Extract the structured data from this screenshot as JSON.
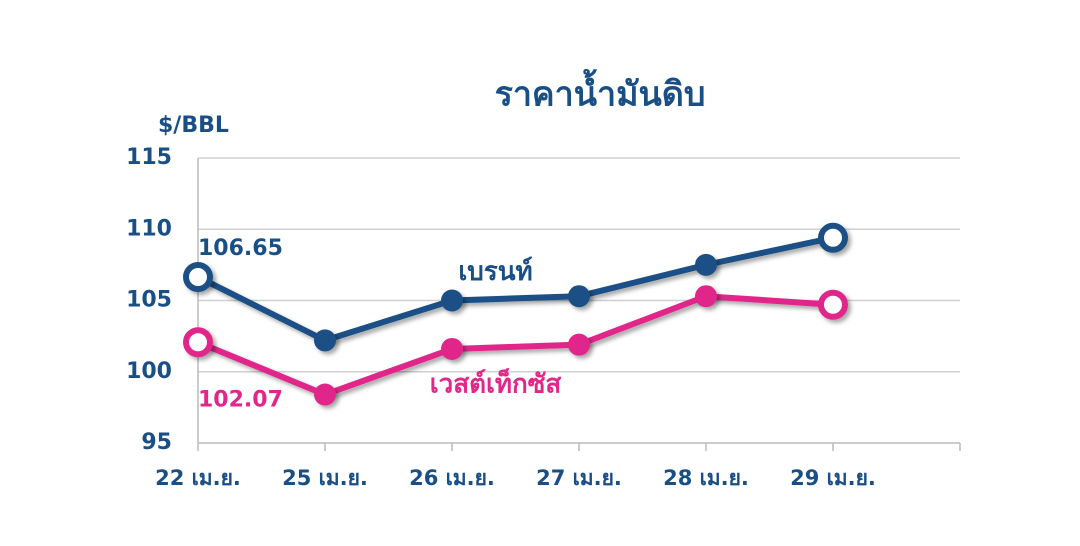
{
  "chart_data": {
    "type": "line",
    "title": "ราคาน้ำมันดิบ",
    "y_label": "$/BBL",
    "categories": [
      "22 เม.ย.",
      "25 เม.ย.",
      "26 เม.ย.",
      "27 เม.ย.",
      "28 เม.ย.",
      "29 เม.ย."
    ],
    "series": [
      {
        "name": "เบรนท์",
        "color": "#1a4f86",
        "values": [
          106.65,
          102.2,
          105.0,
          105.3,
          107.5,
          109.4
        ]
      },
      {
        "name": "เวสต์เท็กซัส",
        "color": "#e0288a",
        "values": [
          102.07,
          98.4,
          101.6,
          101.9,
          105.3,
          104.7
        ]
      }
    ],
    "ylim": [
      95,
      115
    ],
    "yticks": [
      95,
      100,
      105,
      110,
      115
    ],
    "grid": true
  }
}
